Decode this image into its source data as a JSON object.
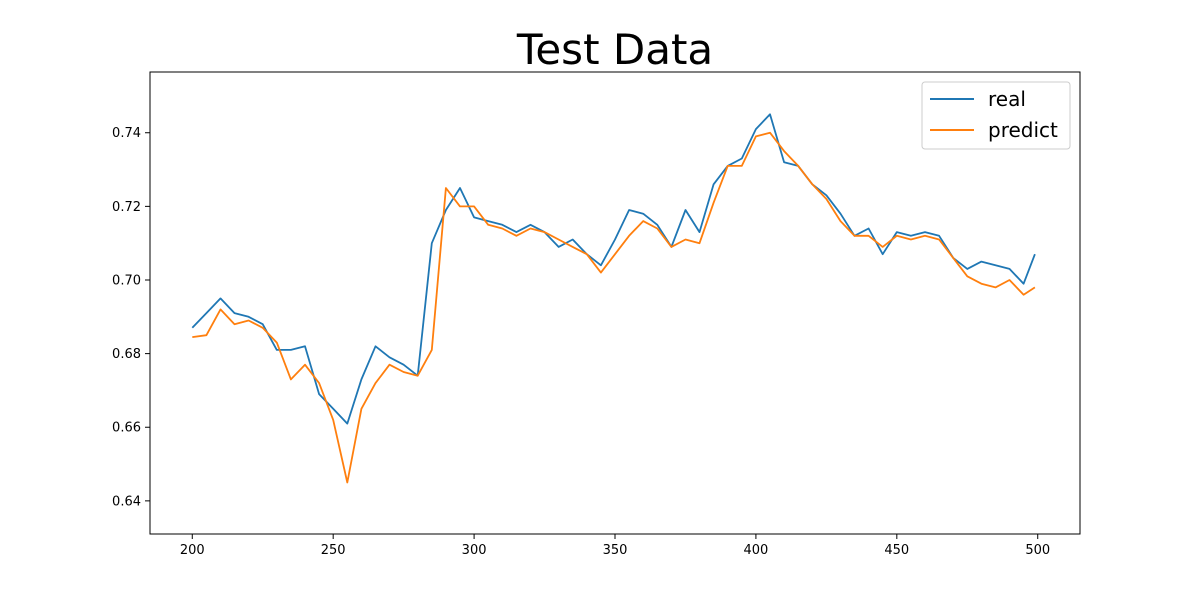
{
  "chart_data": {
    "type": "line",
    "title": "Test Data",
    "xlabel": "",
    "ylabel": "",
    "xlim": [
      185,
      515
    ],
    "ylim": [
      0.631,
      0.7565
    ],
    "x_ticks": [
      200,
      250,
      300,
      350,
      400,
      450,
      500
    ],
    "y_ticks": [
      0.64,
      0.66,
      0.68,
      0.7,
      0.72,
      0.74
    ],
    "y_tick_labels": [
      "0.64",
      "0.66",
      "0.68",
      "0.70",
      "0.72",
      "0.74"
    ],
    "grid": false,
    "legend": "upper-right",
    "x": [
      200,
      205,
      210,
      215,
      220,
      225,
      230,
      235,
      240,
      245,
      250,
      255,
      260,
      265,
      270,
      275,
      280,
      285,
      290,
      295,
      300,
      305,
      310,
      315,
      320,
      325,
      330,
      335,
      340,
      345,
      350,
      355,
      360,
      365,
      370,
      375,
      380,
      385,
      390,
      395,
      400,
      405,
      410,
      415,
      420,
      425,
      430,
      435,
      440,
      445,
      450,
      455,
      460,
      465,
      470,
      475,
      480,
      485,
      490,
      495,
      499
    ],
    "series": [
      {
        "name": "real",
        "color": "#1f77b4",
        "values": [
          0.687,
          0.691,
          0.695,
          0.691,
          0.69,
          0.688,
          0.681,
          0.681,
          0.682,
          0.669,
          0.665,
          0.661,
          0.673,
          0.682,
          0.679,
          0.677,
          0.674,
          0.71,
          0.719,
          0.725,
          0.717,
          0.716,
          0.715,
          0.713,
          0.715,
          0.713,
          0.709,
          0.711,
          0.707,
          0.704,
          0.711,
          0.719,
          0.718,
          0.715,
          0.709,
          0.719,
          0.713,
          0.726,
          0.731,
          0.733,
          0.741,
          0.745,
          0.732,
          0.731,
          0.726,
          0.723,
          0.718,
          0.712,
          0.714,
          0.707,
          0.713,
          0.712,
          0.713,
          0.712,
          0.706,
          0.703,
          0.705,
          0.704,
          0.703,
          0.699,
          0.707
        ]
      },
      {
        "name": "predict",
        "color": "#ff7f0e",
        "values": [
          0.6845,
          0.685,
          0.692,
          0.688,
          0.689,
          0.687,
          0.683,
          0.673,
          0.677,
          0.672,
          0.662,
          0.645,
          0.665,
          0.672,
          0.677,
          0.675,
          0.674,
          0.681,
          0.725,
          0.72,
          0.72,
          0.715,
          0.714,
          0.712,
          0.714,
          0.713,
          0.711,
          0.709,
          0.707,
          0.702,
          0.707,
          0.712,
          0.716,
          0.714,
          0.709,
          0.711,
          0.71,
          0.721,
          0.731,
          0.731,
          0.739,
          0.74,
          0.735,
          0.731,
          0.726,
          0.722,
          0.716,
          0.712,
          0.712,
          0.709,
          0.712,
          0.711,
          0.712,
          0.711,
          0.706,
          0.701,
          0.699,
          0.698,
          0.7,
          0.696,
          0.698
        ]
      }
    ]
  }
}
